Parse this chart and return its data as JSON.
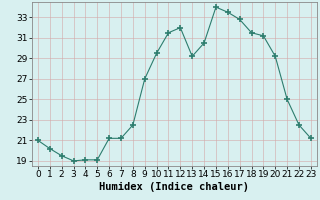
{
  "x": [
    0,
    1,
    2,
    3,
    4,
    5,
    6,
    7,
    8,
    9,
    10,
    11,
    12,
    13,
    14,
    15,
    16,
    17,
    18,
    19,
    20,
    21,
    22,
    23
  ],
  "y": [
    21.0,
    20.2,
    19.5,
    19.0,
    19.1,
    19.1,
    21.2,
    21.2,
    22.5,
    27.0,
    29.5,
    31.5,
    32.0,
    29.2,
    30.5,
    34.0,
    33.5,
    32.8,
    31.5,
    31.2,
    29.2,
    25.0,
    22.5,
    21.2
  ],
  "xlabel": "Humidex (Indice chaleur)",
  "ylim": [
    18.5,
    34.5
  ],
  "xlim": [
    -0.5,
    23.5
  ],
  "yticks": [
    19,
    21,
    23,
    25,
    27,
    29,
    31,
    33
  ],
  "xticks": [
    0,
    1,
    2,
    3,
    4,
    5,
    6,
    7,
    8,
    9,
    10,
    11,
    12,
    13,
    14,
    15,
    16,
    17,
    18,
    19,
    20,
    21,
    22,
    23
  ],
  "line_color": "#2d7d6e",
  "marker_color": "#2d7d6e",
  "bg_color": "#d8f0f0",
  "grid_color_major": "#c8e4e4",
  "grid_color_minor": "#c8e4e4",
  "tick_fontsize": 6.5,
  "xlabel_fontsize": 7.5
}
